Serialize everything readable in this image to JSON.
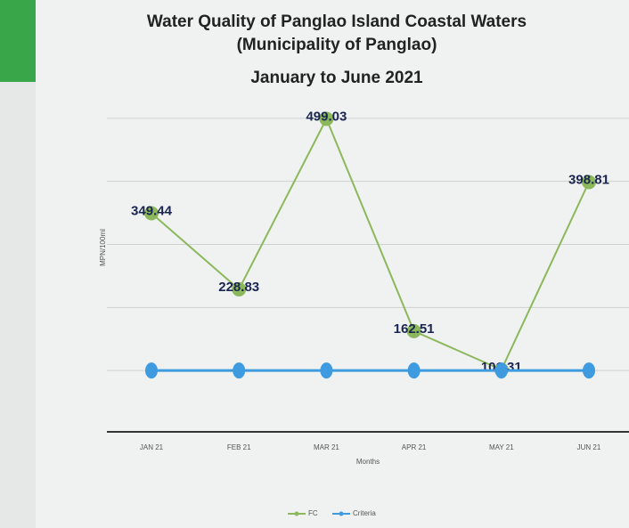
{
  "chart_data": {
    "type": "line",
    "title": "Water Quality of Panglao Island Coastal Waters  (Municipality of Panglao)",
    "subtitle": "January to June 2021",
    "y_label": "MPN/100ml",
    "x_label": "Months",
    "categories": [
      "JAN 21",
      "FEB 21",
      "MAR 21",
      "APR 21",
      "MAY 21",
      "JUN 21"
    ],
    "series": [
      {
        "name": "FC",
        "color": "#8cb85c",
        "values": [
          349.44,
          228.83,
          499.03,
          162.51,
          101.31,
          398.81
        ],
        "data_labels": true
      },
      {
        "name": "Criteria",
        "color": "#3f9be0",
        "values": [
          100,
          100,
          100,
          100,
          100,
          100
        ],
        "data_labels": false
      }
    ],
    "ylim": [
      0,
      600
    ],
    "yticks": [
      100,
      200,
      300,
      400,
      500
    ],
    "grid": true,
    "legend": "bottom"
  }
}
